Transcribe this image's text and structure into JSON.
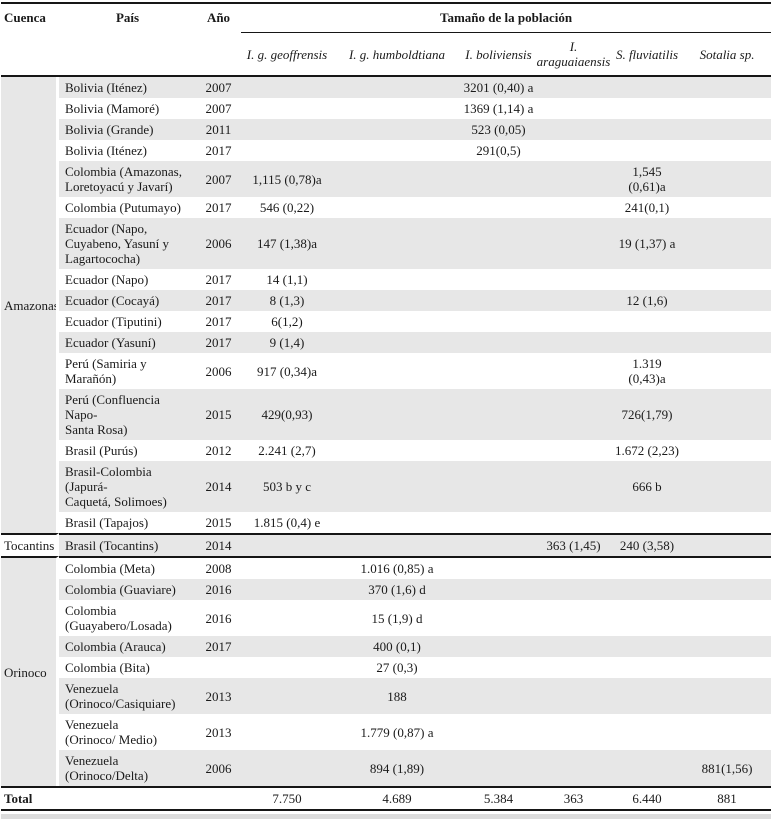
{
  "table": {
    "columns": {
      "cuenca": "Cuenca",
      "pais": "País",
      "anio": "Año"
    },
    "group_header": "Tamaño de la población",
    "species": [
      "I. g. geoffrensis",
      "I. g. humboldtiana",
      "I. boliviensis",
      "I. araguaiaensis",
      "S. fluviatilis",
      "Sotalia sp."
    ],
    "sections": [
      {
        "cuenca": "Amazonas",
        "shaded": true,
        "rows": [
          {
            "pais": "Bolivia (Iténez)",
            "anio": "2007",
            "values": [
              "",
              "",
              "3201 (0,40) a",
              "",
              "",
              ""
            ]
          },
          {
            "pais": "Bolivia (Mamoré)",
            "anio": "2007",
            "values": [
              "",
              "",
              "1369 (1,14) a",
              "",
              "",
              ""
            ]
          },
          {
            "pais": "Bolivia (Grande)",
            "anio": "2011",
            "values": [
              "",
              "",
              "523 (0,05)",
              "",
              "",
              ""
            ]
          },
          {
            "pais": "Bolivia (Iténez)",
            "anio": "2017",
            "values": [
              "",
              "",
              "291(0,5)",
              "",
              "",
              ""
            ]
          },
          {
            "pais": "Colombia (Amazonas,\nLoretoyacú y Javarí)",
            "anio": "2007",
            "values": [
              "1,115 (0,78)a",
              "",
              "",
              "",
              "1,545 (0,61)a",
              ""
            ]
          },
          {
            "pais": "Colombia (Putumayo)",
            "anio": "2017",
            "values": [
              "546 (0,22)",
              "",
              "",
              "",
              "241(0,1)",
              ""
            ]
          },
          {
            "pais": "Ecuador (Napo,\nCuyabeno, Yasuní y\nLagartococha)",
            "anio": "2006",
            "values": [
              "147 (1,38)a",
              "",
              "",
              "",
              "19 (1,37) a",
              ""
            ]
          },
          {
            "pais": "Ecuador (Napo)",
            "anio": "2017",
            "values": [
              "14 (1,1)",
              "",
              "",
              "",
              "",
              ""
            ]
          },
          {
            "pais": "Ecuador (Cocayá)",
            "anio": "2017",
            "values": [
              "8 (1,3)",
              "",
              "",
              "",
              "12 (1,6)",
              ""
            ]
          },
          {
            "pais": "Ecuador (Tiputini)",
            "anio": "2017",
            "values": [
              "6(1,2)",
              "",
              "",
              "",
              "",
              ""
            ]
          },
          {
            "pais": "Ecuador (Yasuní)",
            "anio": "2017",
            "values": [
              "9 (1,4)",
              "",
              "",
              "",
              "",
              ""
            ]
          },
          {
            "pais": "Perú (Samiria y\nMarañón)",
            "anio": "2006",
            "values": [
              "917 (0,34)a",
              "",
              "",
              "",
              "1.319 (0,43)a",
              ""
            ]
          },
          {
            "pais": "Perú (Confluencia Napo-\nSanta Rosa)",
            "anio": "2015",
            "values": [
              "429(0,93)",
              "",
              "",
              "",
              "726(1,79)",
              ""
            ]
          },
          {
            "pais": "Brasil (Purús)",
            "anio": "2012",
            "values": [
              "2.241 (2,7)",
              "",
              "",
              "",
              "1.672 (2,23)",
              ""
            ]
          },
          {
            "pais": "Brasil-Colombia (Japurá-\nCaquetá, Solimoes)",
            "anio": "2014",
            "values": [
              "503 b y c",
              "",
              "",
              "",
              "666 b",
              ""
            ]
          },
          {
            "pais": "Brasil (Tapajos)",
            "anio": "2015",
            "values": [
              "1.815 (0,4) e",
              "",
              "",
              "",
              "",
              ""
            ]
          }
        ]
      },
      {
        "cuenca": "Tocantins",
        "shaded": false,
        "rows": [
          {
            "pais": "Brasil (Tocantins)",
            "anio": "2014",
            "values": [
              "",
              "",
              "",
              "363 (1,45)",
              "240 (3,58)",
              ""
            ]
          }
        ]
      },
      {
        "cuenca": "Orinoco",
        "shaded": true,
        "rows": [
          {
            "pais": "Colombia (Meta)",
            "anio": "2008",
            "values": [
              "",
              "1.016 (0,85) a",
              "",
              "",
              "",
              ""
            ]
          },
          {
            "pais": "Colombia (Guaviare)",
            "anio": "2016",
            "values": [
              "",
              "370 (1,6) d",
              "",
              "",
              "",
              ""
            ]
          },
          {
            "pais": "Colombia\n(Guayabero/Losada)",
            "anio": "2016",
            "values": [
              "",
              "15 (1,9) d",
              "",
              "",
              "",
              ""
            ]
          },
          {
            "pais": "Colombia (Arauca)",
            "anio": "2017",
            "values": [
              "",
              "400 (0,1)",
              "",
              "",
              "",
              ""
            ]
          },
          {
            "pais": "Colombia (Bita)",
            "anio": "",
            "values": [
              "",
              "27 (0,3)",
              "",
              "",
              "",
              ""
            ]
          },
          {
            "pais": "Venezuela\n(Orinoco/Casiquiare)",
            "anio": "2013",
            "values": [
              "",
              "188",
              "",
              "",
              "",
              ""
            ]
          },
          {
            "pais": "Venezuela\n(Orinoco/ Medio)",
            "anio": "2013",
            "values": [
              "",
              "1.779 (0,87) a",
              "",
              "",
              "",
              ""
            ]
          },
          {
            "pais": "Venezuela\n(Orinoco/Delta)",
            "anio": "2006",
            "values": [
              "",
              "894 (1,89)",
              "",
              "",
              "",
              "881(1,56)"
            ]
          }
        ]
      }
    ],
    "total": {
      "label": "Total",
      "values": [
        "7.750",
        "4.689",
        "5.384",
        "363",
        "6.440",
        "881"
      ]
    },
    "colors": {
      "stripe": "#e7e7e7",
      "rule": "#161616",
      "text": "#1a1a1a"
    }
  }
}
